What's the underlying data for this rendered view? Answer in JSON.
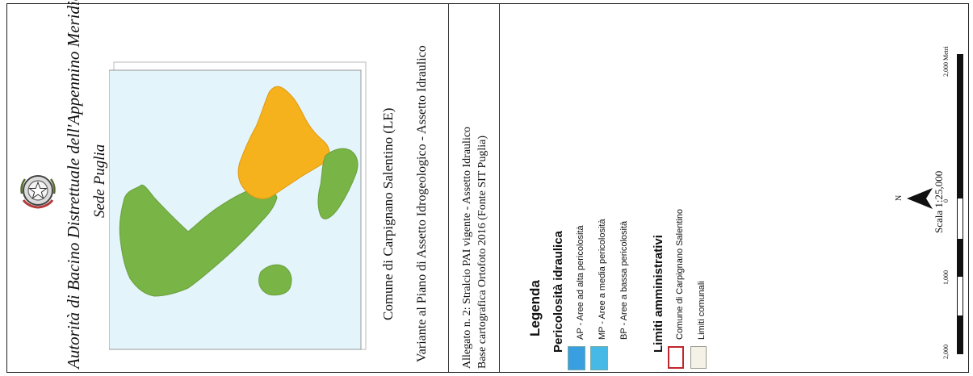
{
  "authority": {
    "line1": "Autorità di Bacino Distrettuale dell'Appennino Meridionale",
    "line2": "Sede Puglia"
  },
  "title": {
    "comune": "Comune di Carpignano Salentino (LE)",
    "variante": "Variante al Piano di Assetto Idrogeologico - Assetto Idraulico"
  },
  "allegato": {
    "line1": "Allegato n. 2: Stralcio PAI vigente - Assetto Idraulico",
    "line2": "Base cartografica Ortofoto 2016 (Fonte SIT Puglia)"
  },
  "legend": {
    "title": "Legenda",
    "hazard_title": "Pericolosità idraulica",
    "hazard_items": [
      {
        "label": "AP - Aree ad alta pericolosità",
        "color": "#3a9fe0"
      },
      {
        "label": "MP - Aree a media pericolosità",
        "color": "#47b9e6"
      },
      {
        "label": "BP - Aree a bassa pericolosità",
        "color": "#ffffff"
      }
    ],
    "admin_title": "Limiti amministrativi",
    "admin_items": [
      {
        "label": "Comune di Carpignano Salentino",
        "stroke": "#c0272d",
        "fill": "#ffffff"
      },
      {
        "label": "Limiti comunali",
        "stroke": "#9a9a8c",
        "fill": "#f4f2e6"
      }
    ]
  },
  "scale": {
    "north": "N",
    "text": "Scala  1:25,000",
    "ticks": [
      "2,000",
      "1,000",
      "0",
      "2,000 Metri"
    ]
  },
  "map": {
    "highlight_color": "#f5b21c",
    "territory_color": "#78b446",
    "water_color": "#e3f4fb"
  }
}
